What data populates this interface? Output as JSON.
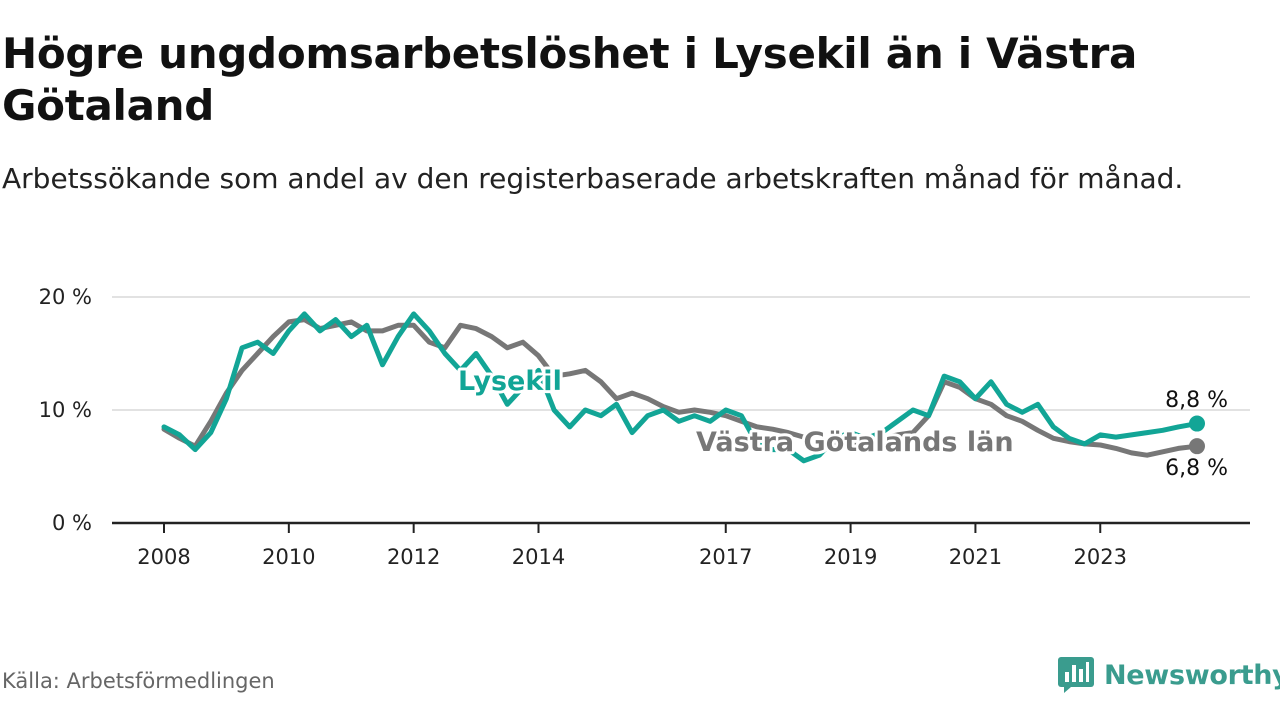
{
  "title": "Högre ungdomsarbetslöshet i Lysekil än i Västra Götaland",
  "subtitle": "Arbetssökande som andel av den registerbaserade arbetskraften månad för månad.",
  "source": "Källa: Arbetsförmedlingen",
  "brand": "Newsworthy",
  "colors": {
    "lysekil": "#12a596",
    "vgl": "#777777",
    "grid": "#d9d9d9",
    "axis": "#222222",
    "brand": "#3a9c8e"
  },
  "icons": {
    "brand": "bar-chart-icon"
  },
  "chart_data": {
    "type": "line",
    "ylim": [
      0,
      20
    ],
    "yticks": [
      0,
      10,
      20
    ],
    "ytick_labels": [
      "0 %",
      "10 %",
      "20 %"
    ],
    "xlim": [
      2008,
      2024.8
    ],
    "xticks": [
      2008,
      2010,
      2012,
      2014,
      2017,
      2019,
      2021,
      2023
    ],
    "xtick_labels": [
      "2008",
      "2010",
      "2012",
      "2014",
      "2017",
      "2019",
      "2021",
      "2023"
    ],
    "grid": true,
    "series": [
      {
        "name": "Västra Götalands län",
        "label": "Västra Götalands län",
        "end_label": "6,8 %",
        "x": [
          2008.0,
          2008.25,
          2008.5,
          2008.75,
          2009.0,
          2009.25,
          2009.5,
          2009.75,
          2010.0,
          2010.25,
          2010.5,
          2010.75,
          2011.0,
          2011.25,
          2011.5,
          2011.75,
          2012.0,
          2012.25,
          2012.5,
          2012.75,
          2013.0,
          2013.25,
          2013.5,
          2013.75,
          2014.0,
          2014.25,
          2014.5,
          2014.75,
          2015.0,
          2015.25,
          2015.5,
          2015.75,
          2016.0,
          2016.25,
          2016.5,
          2016.75,
          2017.0,
          2017.25,
          2017.5,
          2017.75,
          2018.0,
          2018.25,
          2018.5,
          2018.75,
          2019.0,
          2019.25,
          2019.5,
          2019.75,
          2020.0,
          2020.25,
          2020.5,
          2020.75,
          2021.0,
          2021.25,
          2021.5,
          2021.75,
          2022.0,
          2022.25,
          2022.5,
          2022.75,
          2023.0,
          2023.25,
          2023.5,
          2023.75,
          2024.0,
          2024.25,
          2024.55
        ],
        "y": [
          8.3,
          7.5,
          6.8,
          9.0,
          11.5,
          13.5,
          15.0,
          16.5,
          17.8,
          18.0,
          17.2,
          17.5,
          17.8,
          17.0,
          17.0,
          17.5,
          17.5,
          16.0,
          15.5,
          17.5,
          17.2,
          16.5,
          15.5,
          16.0,
          14.8,
          13.0,
          13.2,
          13.5,
          12.5,
          11.0,
          11.5,
          11.0,
          10.3,
          9.8,
          10.0,
          9.8,
          9.5,
          9.0,
          8.5,
          8.3,
          8.0,
          7.6,
          7.3,
          7.0,
          7.0,
          7.2,
          7.5,
          7.8,
          8.0,
          9.5,
          12.5,
          12.0,
          11.0,
          10.5,
          9.5,
          9.0,
          8.2,
          7.5,
          7.2,
          7.0,
          6.9,
          6.6,
          6.2,
          6.0,
          6.3,
          6.6,
          6.8
        ]
      },
      {
        "name": "Lysekil",
        "label": "Lysekil",
        "end_label": "8,8 %",
        "x": [
          2008.0,
          2008.25,
          2008.5,
          2008.75,
          2009.0,
          2009.25,
          2009.5,
          2009.75,
          2010.0,
          2010.25,
          2010.5,
          2010.75,
          2011.0,
          2011.25,
          2011.5,
          2011.75,
          2012.0,
          2012.25,
          2012.5,
          2012.75,
          2013.0,
          2013.25,
          2013.5,
          2013.75,
          2014.0,
          2014.25,
          2014.5,
          2014.75,
          2015.0,
          2015.25,
          2015.5,
          2015.75,
          2016.0,
          2016.25,
          2016.5,
          2016.75,
          2017.0,
          2017.25,
          2017.5,
          2017.75,
          2018.0,
          2018.25,
          2018.5,
          2018.75,
          2019.0,
          2019.25,
          2019.5,
          2019.75,
          2020.0,
          2020.25,
          2020.5,
          2020.75,
          2021.0,
          2021.25,
          2021.5,
          2021.75,
          2022.0,
          2022.25,
          2022.5,
          2022.75,
          2023.0,
          2023.25,
          2023.5,
          2023.75,
          2024.0,
          2024.25,
          2024.55
        ],
        "y": [
          8.5,
          7.8,
          6.5,
          8.0,
          11.0,
          15.5,
          16.0,
          15.0,
          17.0,
          18.5,
          17.0,
          18.0,
          16.5,
          17.5,
          14.0,
          16.5,
          18.5,
          17.0,
          15.0,
          13.5,
          15.0,
          13.0,
          10.5,
          12.0,
          13.5,
          10.0,
          8.5,
          10.0,
          9.5,
          10.5,
          8.0,
          9.5,
          10.0,
          9.0,
          9.5,
          9.0,
          10.0,
          9.5,
          7.0,
          6.5,
          6.5,
          5.5,
          6.0,
          7.5,
          8.0,
          7.5,
          8.0,
          9.0,
          10.0,
          9.5,
          13.0,
          12.5,
          11.0,
          12.5,
          10.5,
          9.8,
          10.5,
          8.5,
          7.5,
          7.0,
          7.8,
          7.6,
          7.8,
          8.0,
          8.2,
          8.5,
          8.8
        ]
      }
    ]
  }
}
